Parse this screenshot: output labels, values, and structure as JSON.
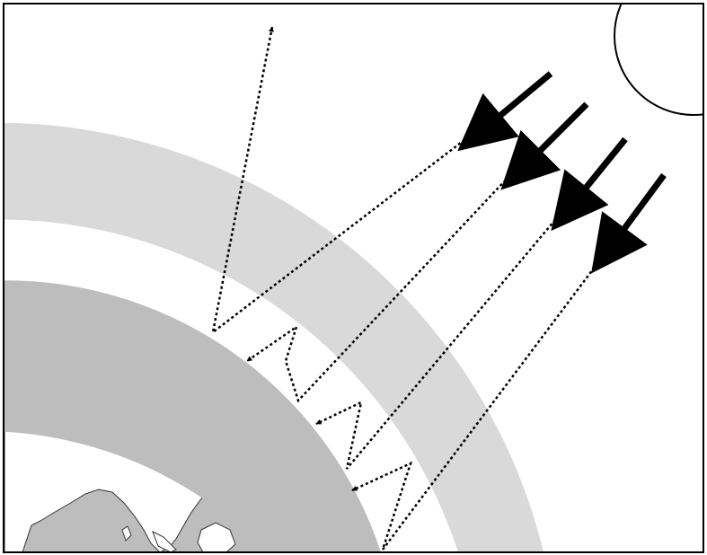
{
  "diagram": {
    "elements": [
      {
        "id": "sun",
        "icon": "sun-icon"
      },
      {
        "id": "atmosphere-band",
        "icon": "atmosphere-band"
      },
      {
        "id": "earth",
        "icon": "earth-globe-icon"
      },
      {
        "id": "incoming-rays",
        "count": 4,
        "icon": "arrow-icon"
      },
      {
        "id": "reflected-ray",
        "icon": "dotted-arrow-icon"
      },
      {
        "id": "trapped-rays",
        "count": 3,
        "icon": "dotted-zigzag-arrow-icon"
      }
    ],
    "colors": {
      "background": "#ffffff",
      "atmosphere": "#d9d9d9",
      "earth_ocean": "#bdbdbd",
      "land": "#ffffff",
      "ray": "#000000",
      "frame": "#000000"
    }
  }
}
